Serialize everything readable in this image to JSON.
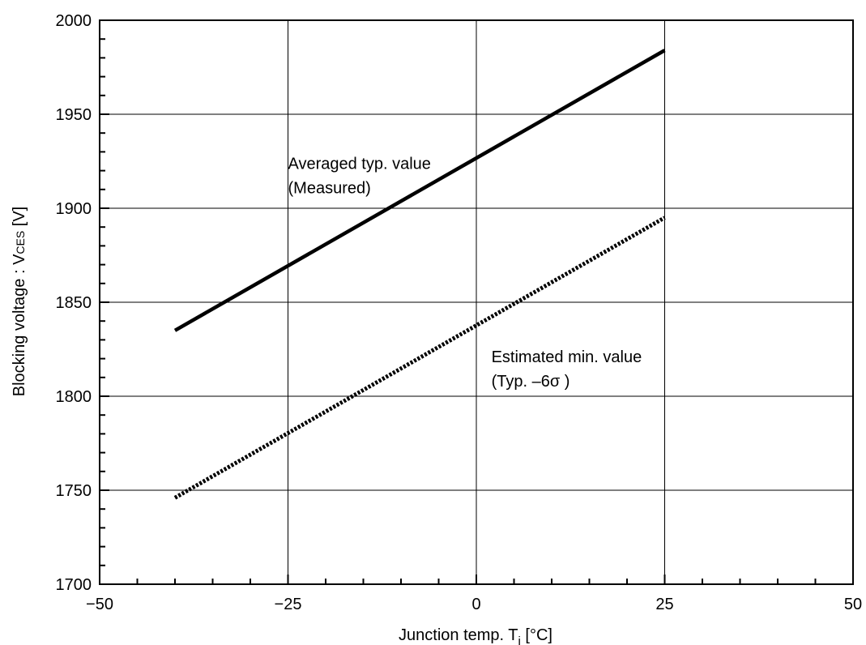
{
  "chart_data": {
    "type": "line",
    "xlabel": "Junction temp. T",
    "xlabel_sub": "j",
    "xlabel_unit": " [°C]",
    "ylabel": "Blocking voltage : V",
    "ylabel_sub": "CES",
    "ylabel_unit": " [V]",
    "xlim": [
      -50,
      50
    ],
    "ylim": [
      1700,
      2000
    ],
    "xticks": [
      -50,
      -25,
      0,
      25,
      50
    ],
    "xtick_labels": [
      "−50",
      "−25",
      "0",
      "25",
      "50"
    ],
    "yticks": [
      1700,
      1750,
      1800,
      1850,
      1900,
      1950,
      2000
    ],
    "ytick_labels": [
      "1700",
      "1750",
      "1800",
      "1850",
      "1900",
      "1950",
      "2000"
    ],
    "grid": true,
    "series": [
      {
        "name": "Averaged typ. value (Measured)",
        "style": "solid",
        "x": [
          -40,
          25
        ],
        "y": [
          1835,
          1984
        ]
      },
      {
        "name": "Estimated min. value (Typ. –6σ)",
        "style": "dotted",
        "x": [
          -40,
          25
        ],
        "y": [
          1746,
          1895
        ]
      }
    ],
    "annotations": [
      {
        "lines": [
          "Averaged typ. value",
          "(Measured)"
        ],
        "anchor_x": -25,
        "anchor_y": 1921
      },
      {
        "lines": [
          "Estimated min. value",
          "(Typ. –6σ )"
        ],
        "anchor_x": 2,
        "anchor_y": 1818
      }
    ]
  }
}
